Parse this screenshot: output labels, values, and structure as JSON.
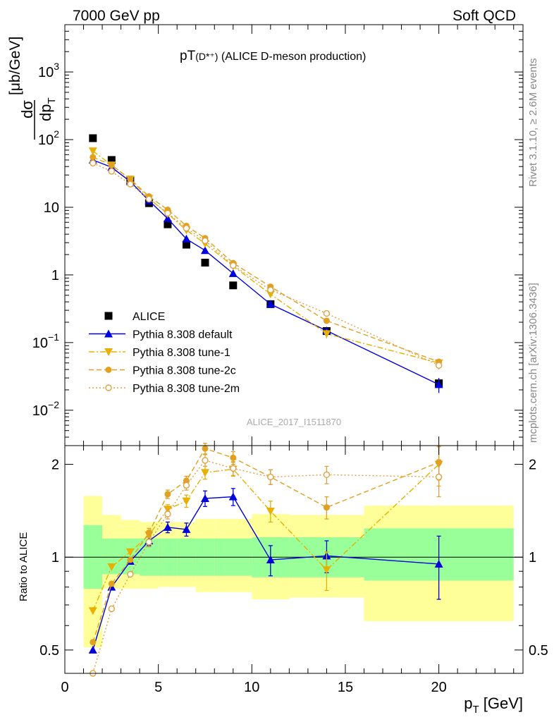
{
  "header": {
    "beam_label": "7000 GeV pp",
    "process_label": "Soft QCD",
    "rivet_label": "Rivet 3.1.10, ≥ 2.6M events",
    "mcplots_label": "mcplots.cern.ch [arXiv:1306.3436]",
    "analysis_id": "ALICE_2017_I1511870"
  },
  "chart_data": [
    {
      "type": "scatter",
      "title_main": "pT",
      "title_particle": "(D*⁺)",
      "title_rest": " (ALICE D-meson production)",
      "ylabel_num": "dσ",
      "ylabel_den": "dp",
      "ylabel_den_sub": "T",
      "ylabel_unit": "[μb/GeV]",
      "yscale": "log",
      "ylim": [
        0.003,
        5000
      ],
      "xlim": [
        0,
        24.5
      ],
      "yticks": [
        {
          "value": 0.01,
          "base": "10",
          "exp": "−2"
        },
        {
          "value": 0.1,
          "base": "10",
          "exp": "−1"
        },
        {
          "value": 1,
          "base": "1",
          "exp": ""
        },
        {
          "value": 10,
          "base": "10",
          "exp": ""
        },
        {
          "value": 100,
          "base": "10",
          "exp": "2"
        },
        {
          "value": 1000,
          "base": "10",
          "exp": "3"
        }
      ],
      "legend_position": "bottom-left",
      "series": [
        {
          "name": "ALICE",
          "color": "#000000",
          "marker": "square",
          "line": "none",
          "x": [
            1.5,
            2.5,
            3.5,
            4.5,
            5.5,
            6.5,
            7.5,
            9.0,
            11.0,
            14.0,
            20.0
          ],
          "y": [
            105,
            50,
            25,
            11.5,
            5.6,
            2.8,
            1.52,
            0.7,
            0.37,
            0.148,
            0.025
          ]
        },
        {
          "name": "Pythia 8.308 default",
          "color": "#0000dd",
          "marker": "triangle-up",
          "line": "solid",
          "x": [
            1.5,
            2.5,
            3.5,
            4.5,
            5.5,
            6.5,
            7.5,
            9.0,
            11.0,
            14.0,
            20.0
          ],
          "y": [
            50,
            39,
            24,
            12.5,
            6.8,
            3.4,
            2.3,
            1.05,
            0.37,
            0.15,
            0.024
          ],
          "yerr": [
            0,
            0,
            0,
            0,
            0,
            0,
            0,
            0,
            0.02,
            0.015,
            0.006
          ]
        },
        {
          "name": "Pythia 8.308 tune-1",
          "color": "#e8b000",
          "marker": "triangle-down",
          "line": "dashdot",
          "x": [
            1.5,
            2.5,
            3.5,
            4.5,
            5.5,
            6.5,
            7.5,
            9.0,
            11.0,
            14.0,
            20.0
          ],
          "y": [
            68,
            42,
            26,
            13.5,
            8.0,
            4.6,
            2.9,
            1.35,
            0.52,
            0.135,
            0.05
          ],
          "yerr": [
            0,
            0,
            0,
            0,
            0,
            0,
            0,
            0,
            0.04,
            0.02,
            0.008
          ]
        },
        {
          "name": "Pythia 8.308 tune-2c",
          "color": "#e0a020",
          "marker": "circle",
          "line": "dashed",
          "x": [
            1.5,
            2.5,
            3.5,
            4.5,
            5.5,
            6.5,
            7.5,
            9.0,
            11.0,
            14.0,
            20.0
          ],
          "y": [
            55,
            42,
            26,
            14.5,
            9.2,
            5.3,
            3.5,
            1.5,
            0.67,
            0.21,
            0.052
          ],
          "yerr": [
            0,
            0,
            0,
            0,
            0,
            0,
            0,
            0,
            0.03,
            0.02,
            0.006
          ]
        },
        {
          "name": "Pythia 8.308 tune-2m",
          "color": "#e0a040",
          "marker": "circle-open",
          "line": "dotted",
          "x": [
            1.5,
            2.5,
            3.5,
            4.5,
            5.5,
            6.5,
            7.5,
            9.0,
            11.0,
            14.0,
            20.0
          ],
          "y": [
            45,
            34,
            22,
            13.2,
            8.2,
            4.9,
            3.2,
            1.38,
            0.6,
            0.27,
            0.046
          ],
          "yerr": [
            0,
            0,
            0,
            0,
            0,
            0,
            0,
            0,
            0.03,
            0.02,
            0.006
          ]
        }
      ]
    },
    {
      "type": "scatter",
      "ylabel": "Ratio to ALICE",
      "xlabel_main": "p",
      "xlabel_sub": "T",
      "xlabel_unit": " [GeV]",
      "yscale": "log",
      "ylim": [
        0.42,
        2.3
      ],
      "xlim": [
        0,
        24.5
      ],
      "yticks": [
        0.5,
        1,
        2
      ],
      "ytick_labels": [
        "0.5",
        "1",
        "2"
      ],
      "xticks": [
        0,
        5,
        10,
        15,
        20
      ],
      "xtick_labels": [
        "0",
        "5",
        "10",
        "15",
        "20"
      ],
      "reference_line": 1,
      "uncertainty_bands": {
        "outer_color": "#ffff99",
        "inner_color": "#99ff99",
        "bins": [
          {
            "x0": 1,
            "x1": 2,
            "outer": [
              0.51,
              1.58
            ],
            "inner": [
              0.79,
              1.27
            ]
          },
          {
            "x0": 2,
            "x1": 3,
            "outer": [
              0.79,
              1.37
            ],
            "inner": [
              0.88,
              1.15
            ]
          },
          {
            "x0": 3,
            "x1": 4,
            "outer": [
              0.79,
              1.32
            ],
            "inner": [
              0.88,
              1.15
            ]
          },
          {
            "x0": 4,
            "x1": 5,
            "outer": [
              0.79,
              1.3
            ],
            "inner": [
              0.87,
              1.15
            ]
          },
          {
            "x0": 5,
            "x1": 6,
            "outer": [
              0.8,
              1.3
            ],
            "inner": [
              0.87,
              1.15
            ]
          },
          {
            "x0": 6,
            "x1": 7,
            "outer": [
              0.8,
              1.3
            ],
            "inner": [
              0.87,
              1.15
            ]
          },
          {
            "x0": 7,
            "x1": 8,
            "outer": [
              0.77,
              1.33
            ],
            "inner": [
              0.87,
              1.15
            ]
          },
          {
            "x0": 8,
            "x1": 10,
            "outer": [
              0.77,
              1.33
            ],
            "inner": [
              0.87,
              1.15
            ]
          },
          {
            "x0": 10,
            "x1": 12,
            "outer": [
              0.73,
              1.38
            ],
            "inner": [
              0.86,
              1.16
            ]
          },
          {
            "x0": 12,
            "x1": 16,
            "outer": [
              0.74,
              1.37
            ],
            "inner": [
              0.86,
              1.16
            ]
          },
          {
            "x0": 16,
            "x1": 24,
            "outer": [
              0.62,
              1.47
            ],
            "inner": [
              0.84,
              1.24
            ]
          }
        ]
      },
      "series": [
        {
          "name": "Pythia 8.308 default",
          "color": "#0000dd",
          "marker": "triangle-up",
          "line": "solid",
          "x": [
            1.5,
            2.5,
            3.5,
            4.5,
            5.5,
            6.5,
            7.5,
            9.0,
            11.0,
            14.0,
            20.0
          ],
          "y": [
            0.5,
            0.8,
            0.97,
            1.13,
            1.25,
            1.23,
            1.55,
            1.57,
            0.98,
            1.01,
            0.95
          ],
          "yerr": [
            0,
            0,
            0,
            0.04,
            0.05,
            0.06,
            0.09,
            0.1,
            0.11,
            0.12,
            0.22
          ]
        },
        {
          "name": "Pythia 8.308 tune-1",
          "color": "#e8b000",
          "marker": "triangle-down",
          "line": "dashdot",
          "x": [
            1.5,
            2.5,
            3.5,
            4.5,
            5.5,
            6.5,
            7.5,
            9.0,
            11.0,
            14.0,
            20.0
          ],
          "y": [
            0.67,
            0.93,
            1.04,
            1.18,
            1.43,
            1.52,
            1.88,
            1.93,
            1.41,
            0.91,
            2.0
          ],
          "yerr": [
            0,
            0,
            0,
            0.04,
            0.05,
            0.07,
            0.09,
            0.1,
            0.11,
            0.13,
            0.3
          ]
        },
        {
          "name": "Pythia 8.308 tune-2c",
          "color": "#e0a020",
          "marker": "circle",
          "line": "dashed",
          "x": [
            1.5,
            2.5,
            3.5,
            4.5,
            5.5,
            6.5,
            7.5,
            9.0,
            11.0,
            14.0,
            20.0
          ],
          "y": [
            0.53,
            0.82,
            0.98,
            1.2,
            1.6,
            1.77,
            2.25,
            2.1,
            1.82,
            1.45,
            2.03
          ],
          "yerr": [
            0,
            0,
            0,
            0.04,
            0.05,
            0.06,
            0.09,
            0.1,
            0.1,
            0.12,
            0.25
          ]
        },
        {
          "name": "Pythia 8.308 tune-2m",
          "color": "#e0a040",
          "marker": "circle-open",
          "line": "dotted",
          "x": [
            1.5,
            2.5,
            3.5,
            4.5,
            5.5,
            6.5,
            7.5,
            9.0,
            11.0,
            14.0,
            20.0
          ],
          "y": [
            0.4,
            0.68,
            0.88,
            1.12,
            1.38,
            1.71,
            2.06,
            1.94,
            1.82,
            1.85,
            1.82
          ],
          "yerr": [
            0,
            0,
            0,
            0.04,
            0.05,
            0.06,
            0.09,
            0.1,
            0.1,
            0.12,
            0.25
          ]
        }
      ]
    }
  ]
}
